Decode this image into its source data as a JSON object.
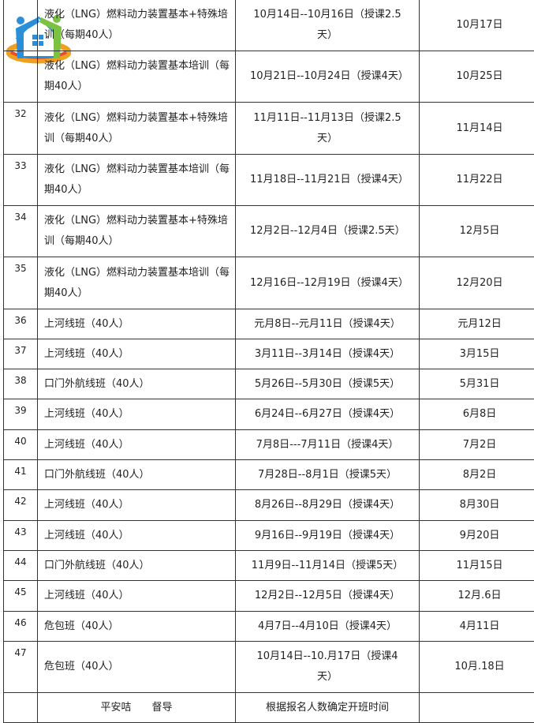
{
  "rows": [
    {
      "num": "",
      "name": "液化（LNG）燃料动力装置基本+特殊培训（每期40人）",
      "dates": "10月14日--10月16日（授课2.5天）",
      "start": "10月17日"
    },
    {
      "num": "",
      "name": "液化（LNG）燃料动力装置基本培训（每期40人）",
      "dates": "10月21日--10月24日（授课4天）",
      "start": "10月25日"
    },
    {
      "num": "32",
      "name": "液化（LNG）燃料动力装置基本+特殊培训（每期40人）",
      "dates": "11月11日--11月13日（授课2.5天）",
      "start": "11月14日"
    },
    {
      "num": "33",
      "name": "液化（LNG）燃料动力装置基本培训（每期40人）",
      "dates": "11月18日--11月21日（授课4天）",
      "start": "11月22日"
    },
    {
      "num": "34",
      "name": "液化（LNG）燃料动力装置基本+特殊培训（每期40人）",
      "dates": "12月2日--12月4日（授课2.5天）",
      "start": "12月5日"
    },
    {
      "num": "35",
      "name": "液化（LNG）燃料动力装置基本培训（每期40人）",
      "dates": "12月16日--12月19日（授课4天）",
      "start": "12月20日"
    },
    {
      "num": "36",
      "name": "上河线班（40人）",
      "dates": "元月8日--元月11日（授课4天）",
      "start": "元月12日"
    },
    {
      "num": "37",
      "name": "上河线班（40人）",
      "dates": "3月11日--3月14日（授课4天）",
      "start": "3月15日"
    },
    {
      "num": "38",
      "name": "口门外航线班（40人）",
      "dates": "5月26日--5月30日（授课5天）",
      "start": "5月31日"
    },
    {
      "num": "39",
      "name": "上河线班（40人）",
      "dates": "6月24日--6月27日（授课4天）",
      "start": "6月8日"
    },
    {
      "num": "40",
      "name": "上河线班（40人）",
      "dates": "7月8日---7月11日（授课4天）",
      "start": "7月2日"
    },
    {
      "num": "41",
      "name": "口门外航线班（40人）",
      "dates": "7月28日--8月1日（授课5天）",
      "start": "8月2日"
    },
    {
      "num": "42",
      "name": "上河线班（40人）",
      "dates": "8月26日--8月29日（授课4天）",
      "start": "8月30日"
    },
    {
      "num": "43",
      "name": "上河线班（40人）",
      "dates": "9月16日--9月19日（授课4天）",
      "start": "9月20日"
    },
    {
      "num": "44",
      "name": "口门外航线班（40人）",
      "dates": "11月9日--11月14日（授课5天）",
      "start": "11月15日"
    },
    {
      "num": "45",
      "name": "上河线班（40人）",
      "dates": "12月2日--12月5日（授课4天）",
      "start": "12月.6日"
    },
    {
      "num": "46",
      "name": "危包班（40人）",
      "dates": "4月7日--4月10日（授课4天）",
      "start": "4月11日"
    },
    {
      "num": "47",
      "name": "危包班（40人）",
      "dates": "10月14日--10.月17日（授课4天）",
      "start": "10月.18日"
    }
  ],
  "footer": {
    "name": "平安咭　　督导",
    "dates": "根据报名人数确定开班时间",
    "start": ""
  },
  "logo": {
    "icon": "house-family-logo",
    "colors": [
      "#2a8fd8",
      "#7cc242",
      "#f2a51e",
      "#e8452c"
    ]
  }
}
